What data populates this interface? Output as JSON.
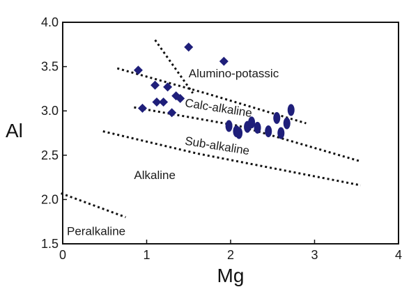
{
  "chart_data": {
    "type": "scatter",
    "title": "",
    "xlabel": "Mg",
    "ylabel": "Al",
    "xlim": [
      0,
      4
    ],
    "ylim": [
      1.5,
      4.0
    ],
    "xticks": [
      0,
      1,
      2,
      3,
      4
    ],
    "xtick_labels": [
      "0",
      "1",
      "2",
      "3",
      "4"
    ],
    "yticks": [
      1.5,
      2.0,
      2.5,
      3.0,
      3.5,
      4.0
    ],
    "ytick_labels": [
      "1.5",
      "2.0",
      "2.5",
      "3.0",
      "3.5",
      "4.0"
    ],
    "grid": false,
    "colors": {
      "marker": "#1f1f7a",
      "boundary": "#111111",
      "text": "#1a1a1a"
    },
    "series": [
      {
        "marker": "diamond",
        "points": [
          [
            0.9,
            3.46
          ],
          [
            0.95,
            3.03
          ],
          [
            1.1,
            3.29
          ],
          [
            1.12,
            3.1
          ],
          [
            1.2,
            3.1
          ],
          [
            1.25,
            3.27
          ],
          [
            1.3,
            2.98
          ],
          [
            1.35,
            3.17
          ],
          [
            1.4,
            3.14
          ],
          [
            1.5,
            3.72
          ],
          [
            1.92,
            3.56
          ]
        ]
      },
      {
        "marker": "ellipse",
        "points": [
          [
            1.98,
            2.83
          ],
          [
            2.07,
            2.77
          ],
          [
            2.1,
            2.75
          ],
          [
            2.2,
            2.82
          ],
          [
            2.25,
            2.87
          ],
          [
            2.32,
            2.81
          ],
          [
            2.45,
            2.77
          ],
          [
            2.55,
            2.92
          ],
          [
            2.6,
            2.75
          ],
          [
            2.67,
            2.86
          ],
          [
            2.72,
            3.01
          ]
        ]
      }
    ],
    "boundaries": [
      {
        "name": "upper-steep",
        "points": [
          [
            1.1,
            3.8
          ],
          [
            1.55,
            3.2
          ]
        ]
      },
      {
        "name": "alumino-potassic-calc-alkaline",
        "points": [
          [
            0.65,
            3.48
          ],
          [
            1.7,
            3.2
          ],
          [
            2.9,
            2.86
          ]
        ]
      },
      {
        "name": "calc-alkaline-sub-alkaline",
        "points": [
          [
            0.85,
            3.04
          ],
          [
            2.1,
            2.83
          ],
          [
            3.55,
            2.43
          ]
        ]
      },
      {
        "name": "sub-alkaline-alkaline",
        "points": [
          [
            0.48,
            2.77
          ],
          [
            1.6,
            2.52
          ],
          [
            3.55,
            2.16
          ]
        ]
      },
      {
        "name": "alkaline-peralkaline",
        "points": [
          [
            -0.02,
            2.07
          ],
          [
            0.75,
            1.8
          ]
        ]
      }
    ],
    "regions": [
      {
        "label": "Alumino-potassic",
        "x": 1.5,
        "y": 3.38,
        "rotate": 0
      },
      {
        "label": "Calc-alkaline",
        "x": 1.45,
        "y": 3.05,
        "rotate": 9
      },
      {
        "label": "Sub-alkaline",
        "x": 1.45,
        "y": 2.62,
        "rotate": 9
      },
      {
        "label": "Alkaline",
        "x": 0.85,
        "y": 2.23,
        "rotate": 0
      },
      {
        "label": "Peralkaline",
        "x": 0.05,
        "y": 1.6,
        "rotate": 0
      }
    ]
  }
}
